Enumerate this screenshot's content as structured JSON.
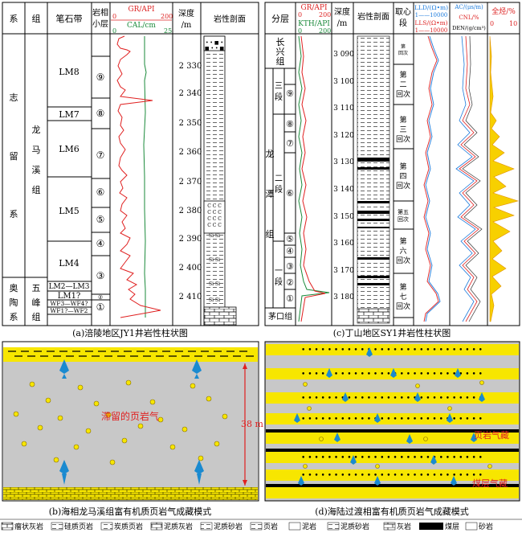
{
  "panel_a": {
    "headers": {
      "xi": "系",
      "zu": "组",
      "bishi": "笔石带",
      "yanxiang": "岩相\n小层",
      "gr": "GR/API",
      "gr_min": "0",
      "gr_max": "200",
      "cal": "CAL/cm",
      "cal_min": "0",
      "cal_max": "25",
      "depth": "深度\n/m",
      "lith": "岩性剖面"
    },
    "systems": [
      "志",
      "留",
      "系",
      "奥",
      "陶",
      "系"
    ],
    "formations": [
      "龙",
      "马",
      "溪",
      "组",
      "五",
      "峰",
      "组"
    ],
    "zones": [
      "LM8",
      "LM7",
      "LM6",
      "LM5",
      "LM4",
      "LM2—LM3",
      "LM1?",
      "WF3—WF4?",
      "WF1?—WF2"
    ],
    "layers": [
      "⑨",
      "⑧",
      "⑦",
      "⑥",
      "⑤",
      "④",
      "③",
      "②",
      "①"
    ],
    "depths": [
      "2 330",
      "2 340",
      "2 350",
      "2 360",
      "2 370",
      "2 380",
      "2 390",
      "2 400",
      "2 410"
    ],
    "caption": "(a)涪陵地区JY1井岩性柱状图"
  },
  "panel_c": {
    "headers": {
      "fenceng": "分层",
      "gr": "GR/API",
      "gr_min": "0",
      "gr_max": "200",
      "kth": "KTH/API",
      "kth_min": "0",
      "kth_max": "200",
      "depth": "深度\n/m",
      "lith": "岩性剖面",
      "quxin": "取心\n段",
      "lld": "LLD/(Ω•m)",
      "lld_range": "1——10000",
      "lls": "LLS/(Ω•m)",
      "lls_range": "1——10000",
      "ac": "AC/(μs/m)",
      "cnl": "CNL/%",
      "den": "DEN/(g/cm³)",
      "qt": "全烃/%",
      "qt_min": "0",
      "qt_max": "10"
    },
    "units": [
      "长",
      "兴",
      "组",
      "龙",
      "潭",
      "组",
      "茅口组"
    ],
    "duan": [
      "三\n段",
      "二\n段",
      "一\n段"
    ],
    "layers": [
      "⑨",
      "⑧",
      "⑦",
      "⑥",
      "⑤",
      "④",
      "③",
      "②",
      "①"
    ],
    "depths": [
      "3 090",
      "3 100",
      "3 110",
      "3 120",
      "3 130",
      "3 140",
      "3 150",
      "3 160",
      "3 170",
      "3 180"
    ],
    "cores": [
      "第一回次",
      "第二回次",
      "第三回次",
      "第四回次",
      "第五回次",
      "第六回次",
      "第七回次"
    ],
    "caption": "(c)丁山地区SY1井岩性柱状图"
  },
  "panel_b": {
    "label": "滞留的页岩气",
    "thickness": "38 m",
    "caption": "(b)海相龙马溪组富有机质页岩气成藏模式"
  },
  "panel_d": {
    "label1": "页岩气藏",
    "label2": "煤层气藏",
    "caption": "(d)海陆过渡相富有机质页岩气成藏模式"
  },
  "legend": [
    "瘤状灰岩",
    "硅质页岩",
    "炭质页岩",
    "泥质灰岩",
    "泥质砂岩",
    "页岩",
    "泥岩",
    "泥质砂岩",
    "灰岩",
    "煤层",
    "砂岩"
  ]
}
